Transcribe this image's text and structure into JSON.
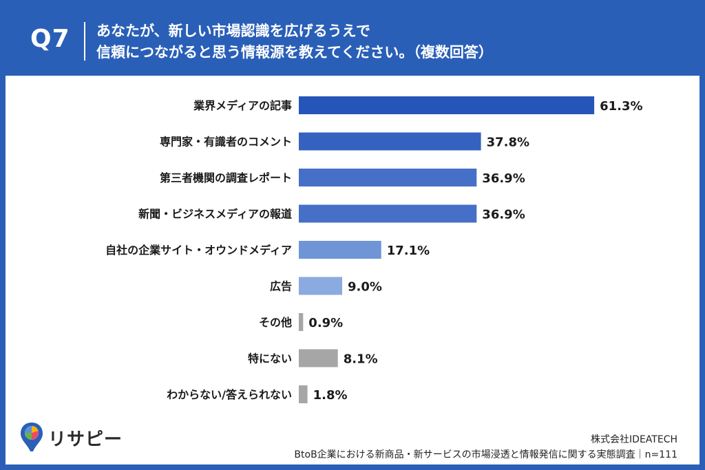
{
  "header": {
    "question_number": "Q7",
    "title_line1": "あなたが、新しい市場認識を広げるうえで",
    "title_line2": "信頼につながると思う情報源を教えてください。（複数回答）"
  },
  "chart_data": {
    "type": "bar",
    "orientation": "horizontal",
    "categories": [
      "業界メディアの記事",
      "専門家・有識者のコメント",
      "第三者機関の調査レポート",
      "新聞・ビジネスメディアの報道",
      "自社の企業サイト・オウンドメディア",
      "広告",
      "その他",
      "特にない",
      "わからない/答えられない"
    ],
    "values": [
      61.3,
      37.8,
      36.9,
      36.9,
      17.1,
      9.0,
      0.9,
      8.1,
      1.8
    ],
    "value_labels": [
      "61.3%",
      "37.8%",
      "36.9%",
      "36.9%",
      "17.1%",
      "9.0%",
      "0.9%",
      "8.1%",
      "1.8%"
    ],
    "bar_colors": [
      "#2555b8",
      "#3562c0",
      "#4670c7",
      "#4670c7",
      "#6f95d7",
      "#8aaae0",
      "#a6a6a6",
      "#a6a6a6",
      "#a6a6a6"
    ],
    "xlim": [
      0,
      70
    ],
    "grid": false,
    "legend": "none"
  },
  "footer": {
    "logo_text": "リサピー",
    "company": "株式会社IDEATECH",
    "survey": "BtoB企業における新商品・新サービスの市場浸透と情報発信に関する実態調査｜n=111"
  },
  "colors": {
    "background": "#2a5fb7",
    "card": "#ffffff"
  }
}
